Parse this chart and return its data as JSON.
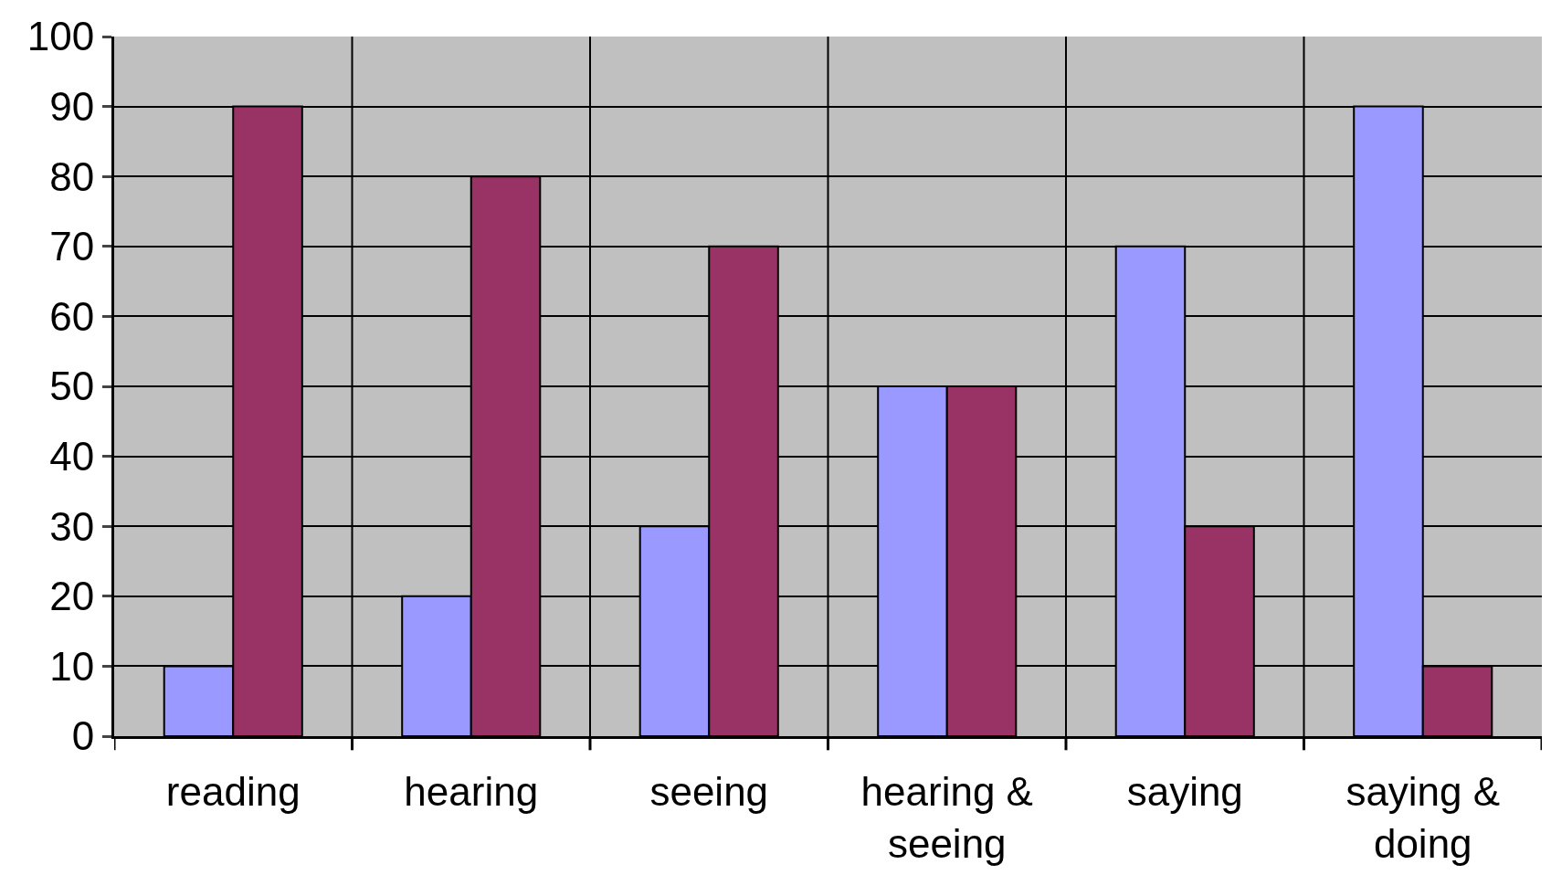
{
  "chart_data": {
    "type": "bar",
    "categories": [
      "reading",
      "hearing",
      "seeing",
      "hearing & seeing",
      "saying",
      "saying & doing"
    ],
    "series": [
      {
        "color": "#9999ff",
        "values": [
          10,
          20,
          30,
          50,
          70,
          90
        ]
      },
      {
        "color": "#993366",
        "values": [
          90,
          80,
          70,
          50,
          30,
          10
        ]
      }
    ],
    "ylim": [
      0,
      100
    ],
    "yticks": [
      0,
      10,
      20,
      30,
      40,
      50,
      60,
      70,
      80,
      90,
      100
    ],
    "grid": true
  }
}
